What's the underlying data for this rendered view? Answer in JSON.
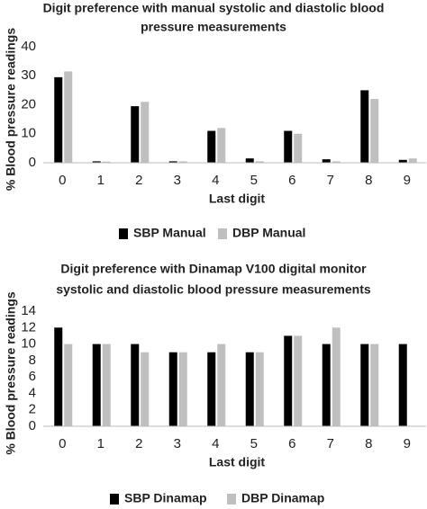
{
  "chart_data": [
    {
      "type": "bar",
      "title": [
        "Digit preference with manual systolic and diastolic blood",
        "pressure measurements"
      ],
      "x_label": "Last digit",
      "y_label": "% Blood pressure readings",
      "categories": [
        "0",
        "1",
        "2",
        "3",
        "4",
        "5",
        "6",
        "7",
        "8",
        "9"
      ],
      "series": [
        {
          "name": "SBP Manual",
          "color": "#000000",
          "values": [
            29.5,
            0.5,
            19.5,
            0.5,
            11,
            1.5,
            11,
            1.2,
            25,
            1
          ]
        },
        {
          "name": "DBP Manual",
          "color": "#bfbfbf",
          "values": [
            31.5,
            0.4,
            21,
            0.5,
            12,
            0.5,
            10,
            0.5,
            22,
            1.5
          ]
        }
      ],
      "ylim": [
        0,
        40
      ],
      "yticks": [
        0,
        10,
        20,
        30,
        40
      ],
      "grid": false,
      "legend": "bottom"
    },
    {
      "type": "bar",
      "title": [
        "Digit preference with Dinamap V100 digital monitor",
        "systolic and diastolic blood pressure measurements"
      ],
      "x_label": "Last digit",
      "y_label": "% Blood pressure readings",
      "categories": [
        "0",
        "1",
        "2",
        "3",
        "4",
        "5",
        "6",
        "7",
        "8",
        "9"
      ],
      "series": [
        {
          "name": "SBP Dinamap",
          "color": "#000000",
          "values": [
            12,
            10,
            10,
            9,
            9,
            9,
            11,
            10,
            10,
            10
          ]
        },
        {
          "name": "DBP Dinamap",
          "color": "#bfbfbf",
          "values": [
            10,
            10,
            9,
            9,
            10,
            9,
            11,
            12,
            10,
            0
          ]
        }
      ],
      "ylim": [
        0,
        14
      ],
      "yticks": [
        0,
        2,
        4,
        6,
        8,
        10,
        12,
        14
      ],
      "grid": false,
      "legend": "bottom"
    }
  ]
}
